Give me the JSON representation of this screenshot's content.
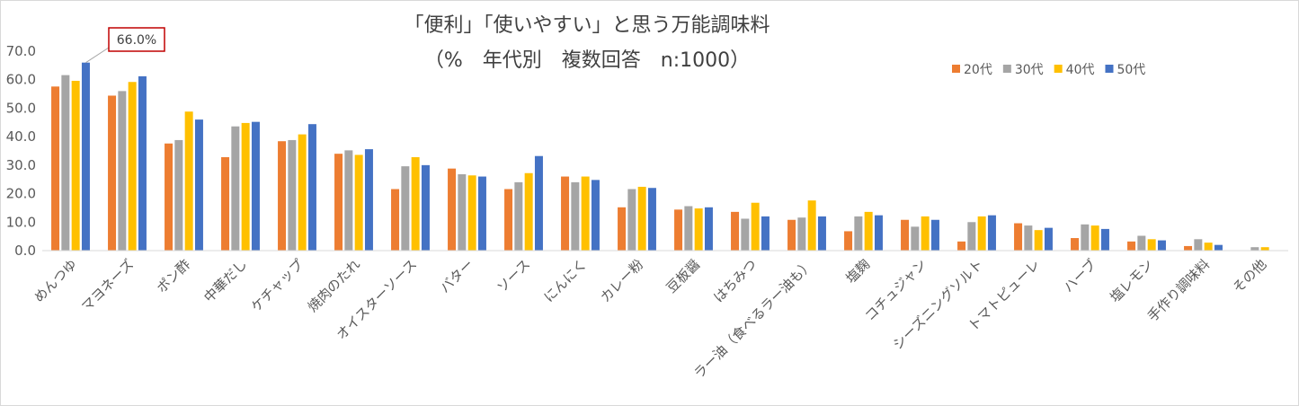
{
  "chart_data": {
    "type": "bar",
    "title": "「便利」「使いやすい」と思う万能調味料",
    "subtitle": "（%　年代別　複数回答　n:1000）",
    "xlabel": "",
    "ylabel": "",
    "ylim": [
      0,
      70
    ],
    "yticks": [
      "0.0",
      "10.0",
      "20.0",
      "30.0",
      "40.0",
      "50.0",
      "60.0",
      "70.0"
    ],
    "grid": false,
    "legend_position": "top-right",
    "categories": [
      "めんつゆ",
      "マヨネーズ",
      "ポン酢",
      "中華だし",
      "ケチャップ",
      "焼肉のたれ",
      "オイスターソース",
      "バター",
      "ソース",
      "にんにく",
      "カレー粉",
      "豆板醤",
      "はちみつ",
      "ラー油（食べるラー油も）",
      "塩麹",
      "コチュジャン",
      "シーズニングソルト",
      "トマトピューレ",
      "ハーブ",
      "塩レモン",
      "手作り調味料",
      "その他"
    ],
    "series": [
      {
        "name": "20代",
        "color": "#ed7d31",
        "values": [
          57.6,
          54.4,
          37.6,
          32.8,
          38.4,
          34.0,
          21.6,
          28.8,
          21.6,
          26.0,
          15.2,
          14.4,
          13.6,
          10.8,
          6.8,
          10.8,
          3.2,
          9.6,
          4.4,
          3.2,
          1.6,
          0.0
        ]
      },
      {
        "name": "30代",
        "color": "#a5a5a5",
        "values": [
          61.6,
          56.0,
          38.8,
          43.6,
          38.8,
          35.2,
          29.6,
          26.8,
          24.0,
          24.0,
          21.6,
          15.6,
          11.2,
          11.6,
          12.0,
          8.4,
          10.0,
          8.8,
          9.2,
          5.2,
          4.0,
          1.2
        ]
      },
      {
        "name": "40代",
        "color": "#ffc000",
        "values": [
          59.6,
          59.2,
          48.8,
          44.8,
          40.8,
          33.6,
          32.8,
          26.4,
          27.2,
          26.0,
          22.4,
          14.8,
          16.8,
          17.6,
          13.6,
          12.0,
          12.0,
          7.2,
          8.8,
          4.0,
          2.8,
          1.2
        ]
      },
      {
        "name": "50代",
        "color": "#4472c4",
        "values": [
          66.0,
          61.2,
          46.0,
          45.2,
          44.4,
          35.6,
          30.0,
          26.0,
          33.2,
          24.8,
          22.0,
          15.2,
          12.0,
          12.0,
          12.4,
          10.8,
          12.4,
          8.0,
          7.6,
          3.6,
          2.0,
          0.0
        ]
      }
    ],
    "annotations": [
      {
        "text": "66.0%",
        "category": "めんつゆ",
        "series": "50代",
        "value": 66.0,
        "border_color": "#c00000"
      }
    ]
  }
}
